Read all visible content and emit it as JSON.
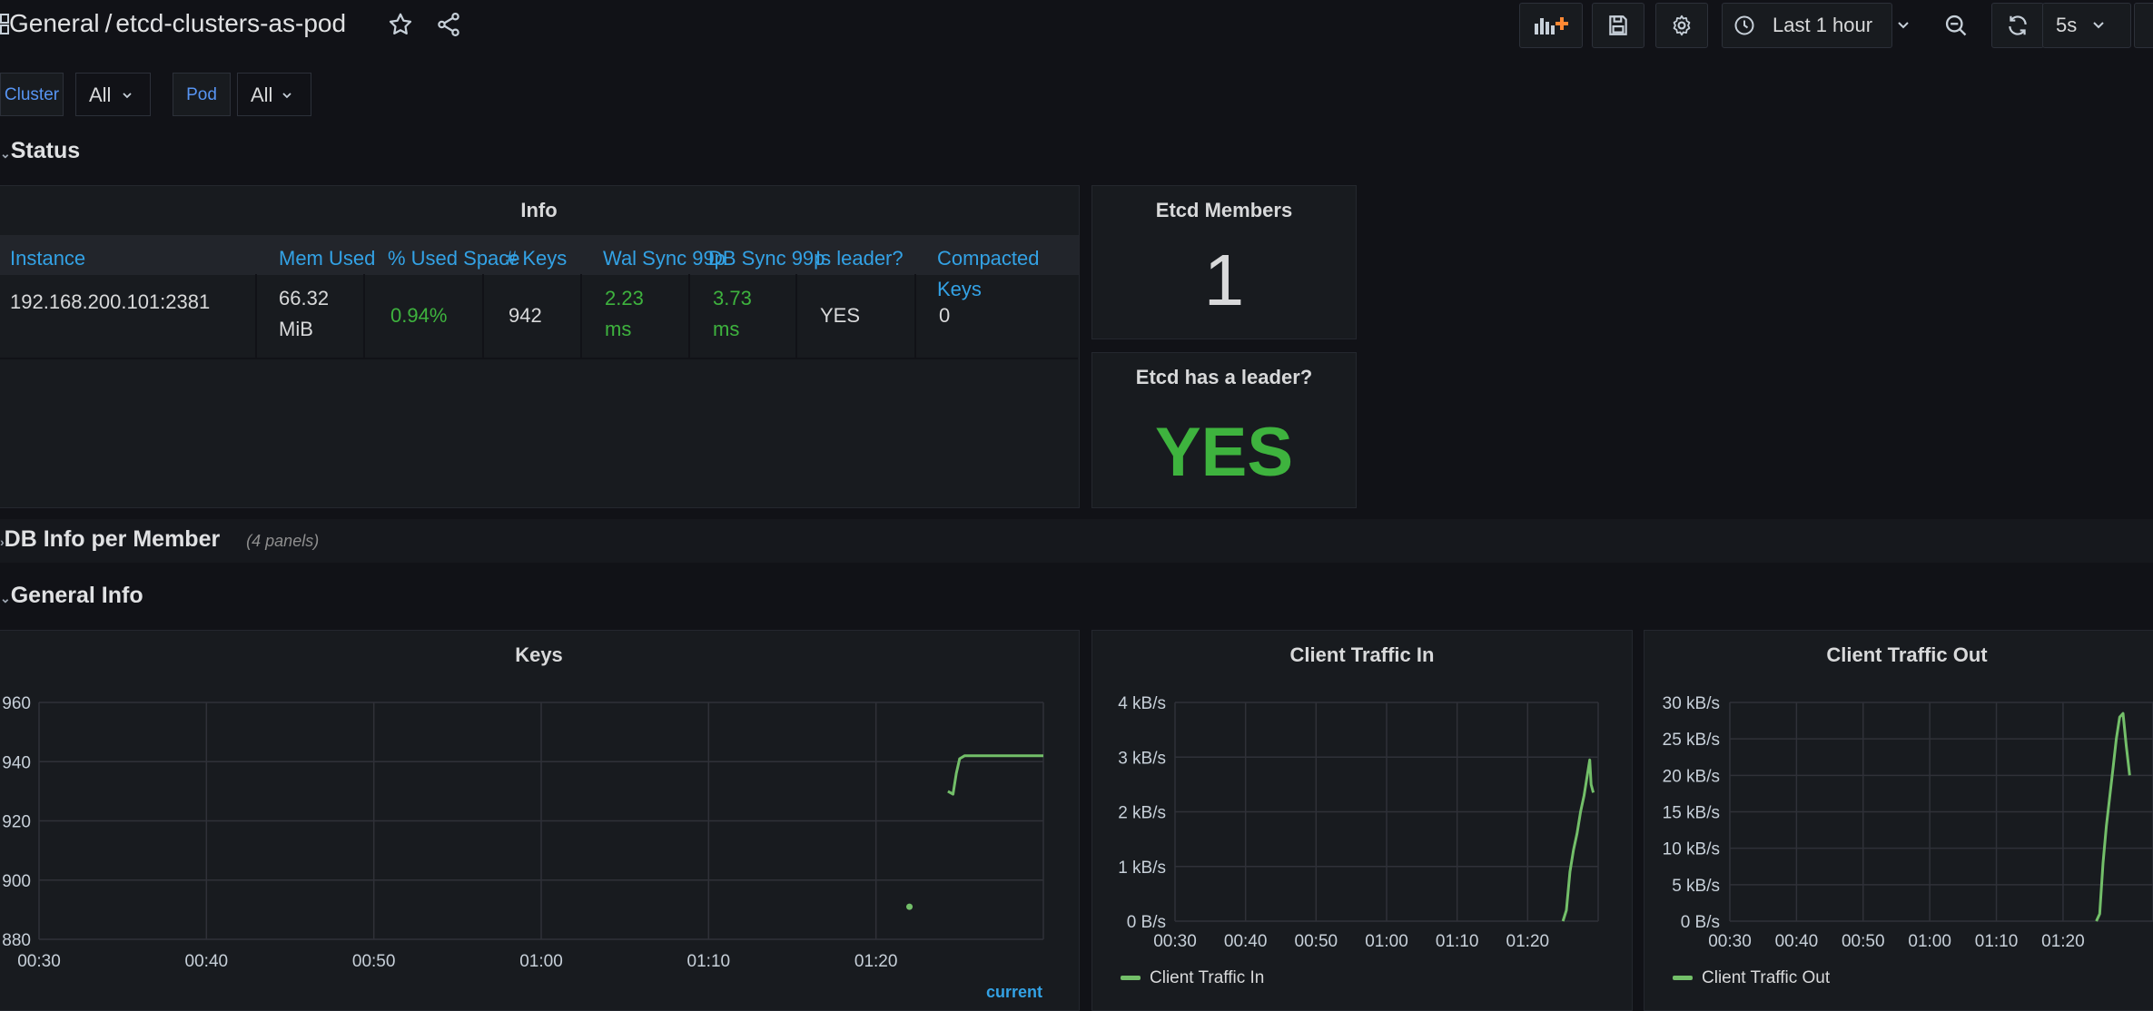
{
  "header": {
    "breadcrumb_folder": "General",
    "breadcrumb_sep": "/",
    "dashboard_title": "etcd-clusters-as-pod",
    "time_range": "Last 1 hour",
    "refresh_interval": "5s"
  },
  "variables": [
    {
      "label": "Cluster",
      "value": "All"
    },
    {
      "label": "Pod",
      "value": "All"
    }
  ],
  "rows": {
    "status": "Status",
    "db_info": "DB Info per Member",
    "db_info_count": "(4 panels)",
    "general_info": "General Info"
  },
  "info_table": {
    "title": "Info",
    "columns": [
      "Instance",
      "Mem Used",
      "% Used Space",
      "# Keys",
      "Wal Sync 99p",
      "DB Sync 99p",
      "Is leader?",
      "Compacted Keys"
    ],
    "row": {
      "instance": "192.168.200.101:2381",
      "mem_used": "66.32 MiB",
      "used_space": "0.94%",
      "keys": "942",
      "wal_sync": "2.23 ms",
      "db_sync": "3.73 ms",
      "is_leader": "YES",
      "compacted_keys": "0"
    }
  },
  "stat_members": {
    "title": "Etcd Members",
    "value": "1"
  },
  "stat_leader": {
    "title": "Etcd has a leader?",
    "value": "YES"
  },
  "colors": {
    "green": "#3eb33e",
    "series": "#73bf69",
    "link": "#33a2e5"
  },
  "chart_data": [
    {
      "type": "line",
      "title": "Keys",
      "x_ticks": [
        "00:30",
        "00:40",
        "00:50",
        "01:00",
        "01:10",
        "01:20"
      ],
      "y_ticks": [
        "880",
        "900",
        "920",
        "940",
        "960"
      ],
      "ylim": [
        880,
        960
      ],
      "xlim_minutes": [
        30,
        90
      ],
      "series": [
        {
          "name": "",
          "x": [
            84.3,
            84.6,
            84.8,
            85.0,
            85.3,
            86.0,
            90.0
          ],
          "y": [
            930,
            929,
            936,
            941,
            942,
            942,
            942
          ]
        }
      ],
      "points": [
        {
          "x": 82.0,
          "y": 891
        }
      ],
      "legend_header": "current"
    },
    {
      "type": "line",
      "title": "Client Traffic In",
      "x_ticks": [
        "00:30",
        "00:40",
        "00:50",
        "01:00",
        "01:10",
        "01:20"
      ],
      "y_ticks": [
        "0 B/s",
        "1 kB/s",
        "2 kB/s",
        "3 kB/s",
        "4 kB/s"
      ],
      "ylim": [
        0,
        4000
      ],
      "xlim_minutes": [
        30,
        90
      ],
      "series": [
        {
          "name": "Client Traffic In",
          "x": [
            85.0,
            85.5,
            86.0,
            86.5,
            87.0,
            87.5,
            88.0,
            88.5,
            88.8,
            89.0,
            89.3
          ],
          "y": [
            0,
            200,
            900,
            1300,
            1600,
            2000,
            2300,
            2700,
            2950,
            2500,
            2350
          ]
        }
      ]
    },
    {
      "type": "line",
      "title": "Client Traffic Out",
      "x_ticks": [
        "00:30",
        "00:40",
        "00:50",
        "01:00",
        "01:10",
        "01:20"
      ],
      "y_ticks": [
        "0 B/s",
        "5 kB/s",
        "10 kB/s",
        "15 kB/s",
        "20 kB/s",
        "25 kB/s",
        "30 kB/s"
      ],
      "ylim": [
        0,
        30000
      ],
      "xlim_minutes": [
        30,
        90
      ],
      "series": [
        {
          "name": "Client Traffic Out",
          "x": [
            85.0,
            85.5,
            86.0,
            86.5,
            87.0,
            87.5,
            88.0,
            88.5,
            89.0,
            89.5,
            90.0
          ],
          "y": [
            0,
            1000,
            8000,
            13000,
            17000,
            21000,
            25000,
            28000,
            28500,
            24000,
            20000
          ]
        }
      ]
    }
  ]
}
